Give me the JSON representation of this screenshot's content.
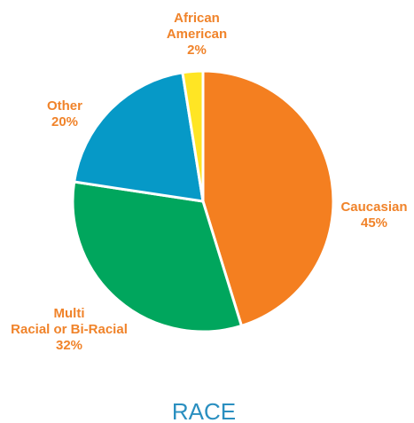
{
  "chart_data": {
    "type": "pie",
    "title": "RACE",
    "start_angle_deg": 0,
    "direction": "clockwise",
    "slices": [
      {
        "label_lines": [
          "Caucasian",
          "45%"
        ],
        "value": 45,
        "color": "#F47F20"
      },
      {
        "label_lines": [
          "Multi",
          "Racial or Bi-Racial",
          "32%"
        ],
        "value": 32,
        "color": "#00A65D"
      },
      {
        "label_lines": [
          "Other",
          "20%"
        ],
        "value": 20,
        "color": "#0699C7"
      },
      {
        "label_lines": [
          "African",
          "American",
          "2%"
        ],
        "value": 2.5,
        "color": "#FFE524"
      }
    ],
    "label_color": "#F0832A",
    "title_color": "#2A8FC0",
    "slice_border_color": "#FFFFFF"
  }
}
